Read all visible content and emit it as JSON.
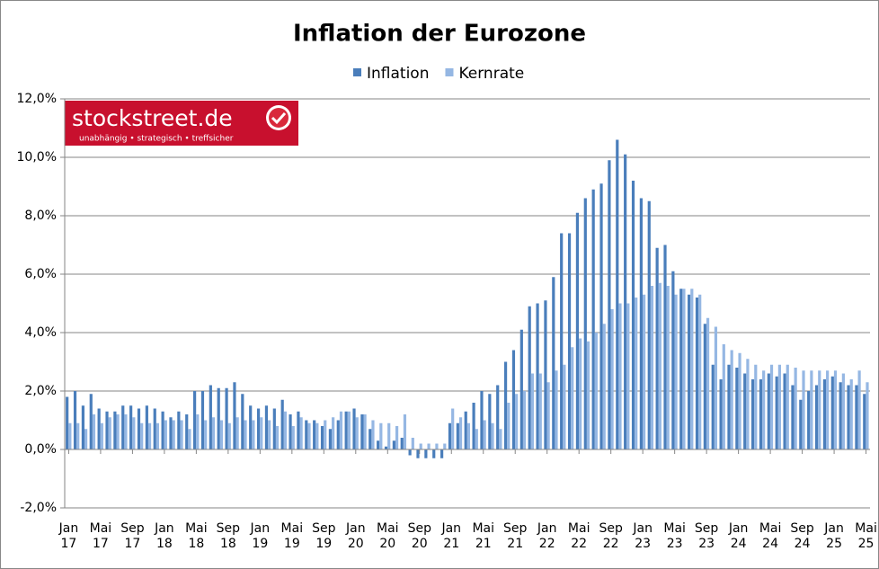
{
  "chart_data": {
    "type": "bar",
    "title": "Inflation der Eurozone",
    "logo": {
      "text": "stockstreet.de",
      "tagline": "unabhängig • strategisch • treffsicher"
    },
    "categories": [
      "Jan 17",
      null,
      null,
      null,
      "Mai 17",
      null,
      null,
      null,
      "Sep 17",
      null,
      null,
      null,
      "Jan 18",
      null,
      null,
      null,
      "Mai 18",
      null,
      null,
      null,
      "Sep 18",
      null,
      null,
      null,
      "Jan 19",
      null,
      null,
      null,
      "Mai 19",
      null,
      null,
      null,
      "Sep 19",
      null,
      null,
      null,
      "Jan 20",
      null,
      null,
      null,
      "Mai 20",
      null,
      null,
      null,
      "Sep 20",
      null,
      null,
      null,
      "Jan 21",
      null,
      null,
      null,
      "Mai 21",
      null,
      null,
      null,
      "Sep 21",
      null,
      null,
      null,
      "Jan 22",
      null,
      null,
      null,
      "Mai 22",
      null,
      null,
      null,
      "Sep 22",
      null,
      null,
      null,
      "Jan 23",
      null,
      null,
      null,
      "Mai 23",
      null,
      null,
      null,
      "Sep 23",
      null,
      null,
      null,
      "Jan 24",
      null,
      null,
      null,
      "Mai 24",
      null,
      null,
      null,
      "Sep 24",
      null,
      null,
      null,
      "Jan 25",
      null,
      null,
      null,
      "Mai 25"
    ],
    "series": [
      {
        "name": "Inflation",
        "color": "#4a7ebb",
        "values": [
          1.8,
          2.0,
          1.5,
          1.9,
          1.4,
          1.3,
          1.3,
          1.5,
          1.5,
          1.4,
          1.5,
          1.4,
          1.3,
          1.1,
          1.3,
          1.2,
          2.0,
          2.0,
          2.2,
          2.1,
          2.1,
          2.3,
          1.9,
          1.5,
          1.4,
          1.5,
          1.4,
          1.7,
          1.2,
          1.3,
          1.0,
          1.0,
          0.8,
          0.7,
          1.0,
          1.3,
          1.4,
          1.2,
          0.7,
          0.3,
          0.1,
          0.3,
          0.4,
          -0.2,
          -0.3,
          -0.3,
          -0.3,
          -0.3,
          0.9,
          0.9,
          1.3,
          1.6,
          2.0,
          1.9,
          2.2,
          3.0,
          3.4,
          4.1,
          4.9,
          5.0,
          5.1,
          5.9,
          7.4,
          7.4,
          8.1,
          8.6,
          8.9,
          9.1,
          9.9,
          10.6,
          10.1,
          9.2,
          8.6,
          8.5,
          6.9,
          7.0,
          6.1,
          5.5,
          5.3,
          5.2,
          4.3,
          2.9,
          2.4,
          2.9,
          2.8,
          2.6,
          2.4,
          2.4,
          2.6,
          2.5,
          2.6,
          2.2,
          1.7,
          2.0,
          2.2,
          2.4,
          2.5,
          2.3,
          2.2,
          2.2,
          1.9
        ]
      },
      {
        "name": "Kernrate",
        "color": "#95b7e3",
        "values": [
          0.9,
          0.9,
          0.7,
          1.2,
          0.9,
          1.1,
          1.2,
          1.2,
          1.1,
          0.9,
          0.9,
          0.9,
          1.0,
          1.0,
          1.0,
          0.7,
          1.2,
          1.0,
          1.1,
          1.0,
          0.9,
          1.1,
          1.0,
          1.0,
          1.1,
          1.0,
          0.8,
          1.3,
          0.8,
          1.1,
          0.9,
          0.9,
          1.0,
          1.1,
          1.3,
          1.3,
          1.1,
          1.2,
          1.0,
          0.9,
          0.9,
          0.8,
          1.2,
          0.4,
          0.2,
          0.2,
          0.2,
          0.2,
          1.4,
          1.1,
          0.9,
          0.7,
          1.0,
          0.9,
          0.7,
          1.6,
          1.9,
          2.0,
          2.6,
          2.6,
          2.3,
          2.7,
          2.9,
          3.5,
          3.8,
          3.7,
          4.0,
          4.3,
          4.8,
          5.0,
          5.0,
          5.2,
          5.3,
          5.6,
          5.7,
          5.6,
          5.3,
          5.5,
          5.5,
          5.3,
          4.5,
          4.2,
          3.6,
          3.4,
          3.3,
          3.1,
          2.9,
          2.7,
          2.9,
          2.9,
          2.9,
          2.8,
          2.7,
          2.7,
          2.7,
          2.7,
          2.7,
          2.6,
          2.4,
          2.7,
          2.3
        ]
      }
    ],
    "ylim": [
      -2,
      12
    ],
    "yticks": [
      {
        "value": -2,
        "label": "-2,0%"
      },
      {
        "value": 0,
        "label": "0,0%"
      },
      {
        "value": 2,
        "label": "2,0%"
      },
      {
        "value": 4,
        "label": "4,0%"
      },
      {
        "value": 6,
        "label": "6,0%"
      },
      {
        "value": 8,
        "label": "8,0%"
      },
      {
        "value": 10,
        "label": "10,0%"
      },
      {
        "value": 12,
        "label": "12,0%"
      }
    ],
    "grid": true,
    "legend": "top"
  }
}
